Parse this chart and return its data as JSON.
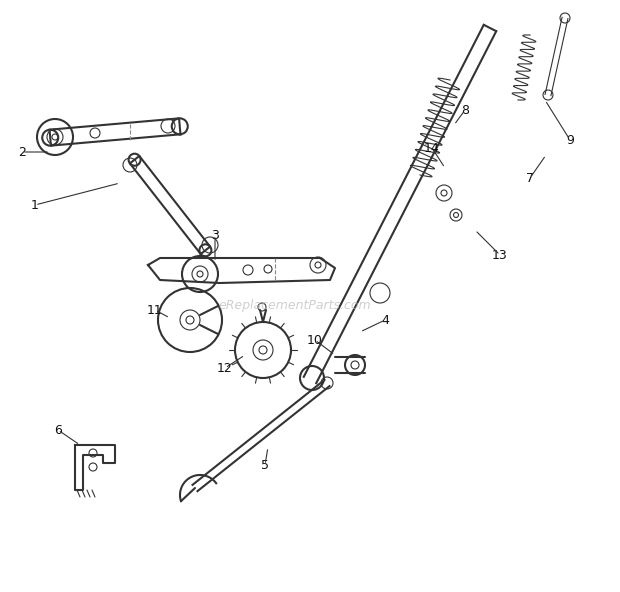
{
  "background_color": "#ffffff",
  "line_color": "#333333",
  "text_color": "#111111",
  "watermark_text": "eReplacementParts.com",
  "watermark_color": "#bbbbbb",
  "figsize": [
    6.2,
    5.92
  ],
  "dpi": 100
}
